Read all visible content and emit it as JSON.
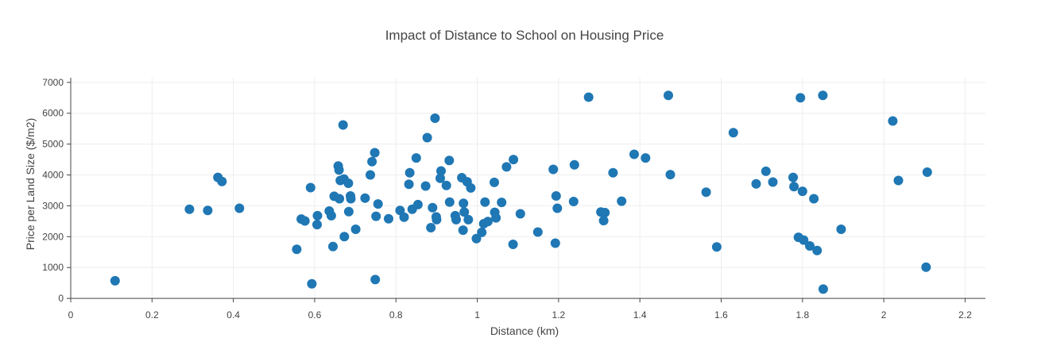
{
  "chart_data": {
    "type": "scatter",
    "title": "Impact of Distance to School on Housing Price",
    "xlabel": "Distance (km)",
    "ylabel": "Price per Land Size ($/m2)",
    "xlim": [
      0,
      2.25
    ],
    "ylim": [
      -100,
      7150
    ],
    "xticks": [
      0,
      0.2,
      0.4,
      0.6,
      0.8,
      1,
      1.2,
      1.4,
      1.6,
      1.8,
      2,
      2.2
    ],
    "xtick_labels": [
      "0",
      "0.2",
      "0.4",
      "0.6",
      "0.8",
      "1",
      "1.2",
      "1.4",
      "1.6",
      "1.8",
      "2",
      "2.2"
    ],
    "yticks": [
      0,
      1000,
      2000,
      3000,
      4000,
      5000,
      6000,
      7000
    ],
    "ytick_labels": [
      "0",
      "1000",
      "2000",
      "3000",
      "4000",
      "5000",
      "6000",
      "7000"
    ],
    "grid": true,
    "marker_color": "#1f77b4",
    "points": [
      [
        0.109,
        570
      ],
      [
        0.292,
        2890
      ],
      [
        0.337,
        2850
      ],
      [
        0.362,
        3920
      ],
      [
        0.372,
        3790
      ],
      [
        0.415,
        2920
      ],
      [
        0.556,
        1590
      ],
      [
        0.567,
        2570
      ],
      [
        0.576,
        2510
      ],
      [
        0.59,
        3590
      ],
      [
        0.593,
        470
      ],
      [
        0.606,
        2390
      ],
      [
        0.607,
        2680
      ],
      [
        0.636,
        2830
      ],
      [
        0.641,
        2680
      ],
      [
        0.645,
        1680
      ],
      [
        0.648,
        3310
      ],
      [
        0.658,
        4290
      ],
      [
        0.66,
        4160
      ],
      [
        0.661,
        3230
      ],
      [
        0.663,
        3820
      ],
      [
        0.67,
        5620
      ],
      [
        0.672,
        3870
      ],
      [
        0.673,
        2000
      ],
      [
        0.683,
        3730
      ],
      [
        0.684,
        2810
      ],
      [
        0.688,
        3320
      ],
      [
        0.689,
        3230
      ],
      [
        0.701,
        2240
      ],
      [
        0.724,
        3250
      ],
      [
        0.737,
        4000
      ],
      [
        0.741,
        4430
      ],
      [
        0.748,
        4720
      ],
      [
        0.749,
        610
      ],
      [
        0.751,
        2660
      ],
      [
        0.756,
        3060
      ],
      [
        0.782,
        2580
      ],
      [
        0.81,
        2850
      ],
      [
        0.82,
        2630
      ],
      [
        0.832,
        3700
      ],
      [
        0.834,
        4070
      ],
      [
        0.84,
        2890
      ],
      [
        0.85,
        4550
      ],
      [
        0.854,
        3040
      ],
      [
        0.873,
        3640
      ],
      [
        0.877,
        5210
      ],
      [
        0.886,
        2290
      ],
      [
        0.89,
        2940
      ],
      [
        0.896,
        5840
      ],
      [
        0.899,
        2640
      ],
      [
        0.9,
        2550
      ],
      [
        0.909,
        3890
      ],
      [
        0.911,
        4130
      ],
      [
        0.924,
        3660
      ],
      [
        0.931,
        4470
      ],
      [
        0.932,
        3120
      ],
      [
        0.946,
        2680
      ],
      [
        0.948,
        2550
      ],
      [
        0.962,
        3910
      ],
      [
        0.965,
        2210
      ],
      [
        0.966,
        3080
      ],
      [
        0.968,
        2800
      ],
      [
        0.975,
        3780
      ],
      [
        0.978,
        2550
      ],
      [
        0.984,
        3580
      ],
      [
        0.998,
        1940
      ],
      [
        1.011,
        2140
      ],
      [
        1.016,
        2420
      ],
      [
        1.019,
        3120
      ],
      [
        1.026,
        2490
      ],
      [
        1.042,
        3760
      ],
      [
        1.043,
        2790
      ],
      [
        1.046,
        2610
      ],
      [
        1.06,
        3110
      ],
      [
        1.072,
        4260
      ],
      [
        1.088,
        1750
      ],
      [
        1.089,
        4500
      ],
      [
        1.106,
        2740
      ],
      [
        1.149,
        2150
      ],
      [
        1.187,
        4180
      ],
      [
        1.192,
        1790
      ],
      [
        1.194,
        3320
      ],
      [
        1.197,
        2920
      ],
      [
        1.237,
        3140
      ],
      [
        1.239,
        4330
      ],
      [
        1.274,
        6520
      ],
      [
        1.304,
        2800
      ],
      [
        1.311,
        2520
      ],
      [
        1.314,
        2780
      ],
      [
        1.334,
        4070
      ],
      [
        1.355,
        3150
      ],
      [
        1.386,
        4670
      ],
      [
        1.414,
        4550
      ],
      [
        1.47,
        6580
      ],
      [
        1.475,
        4010
      ],
      [
        1.563,
        3440
      ],
      [
        1.589,
        1670
      ],
      [
        1.63,
        5370
      ],
      [
        1.686,
        3710
      ],
      [
        1.71,
        4120
      ],
      [
        1.727,
        3770
      ],
      [
        1.777,
        3920
      ],
      [
        1.779,
        3620
      ],
      [
        1.79,
        1980
      ],
      [
        1.795,
        6500
      ],
      [
        1.8,
        3470
      ],
      [
        1.803,
        1890
      ],
      [
        1.818,
        1700
      ],
      [
        1.828,
        3230
      ],
      [
        1.836,
        1550
      ],
      [
        1.85,
        6580
      ],
      [
        1.851,
        300
      ],
      [
        1.895,
        2240
      ],
      [
        2.022,
        5750
      ],
      [
        2.036,
        3820
      ],
      [
        2.104,
        1010
      ],
      [
        2.107,
        4090
      ]
    ]
  }
}
